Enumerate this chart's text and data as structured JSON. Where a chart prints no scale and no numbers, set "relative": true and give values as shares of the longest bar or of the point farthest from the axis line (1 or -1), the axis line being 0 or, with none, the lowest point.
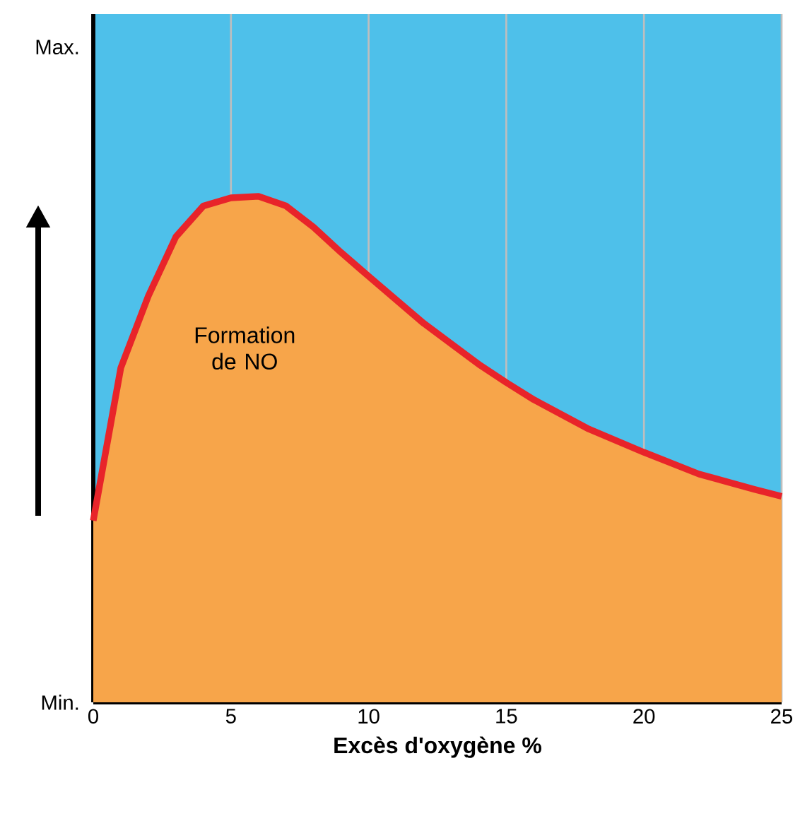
{
  "chart_data": {
    "type": "area",
    "xlabel": "Excès d'oxygène %",
    "relative": true,
    "xlim": [
      0,
      25
    ],
    "xticks": [
      0,
      5,
      10,
      15,
      20,
      25
    ],
    "annotations": [
      "Max.",
      "Min."
    ],
    "grid": "x",
    "series": [
      {
        "name": "Formation de NO",
        "color": "#f7a54a",
        "x": [
          0,
          1,
          2,
          3,
          4,
          5,
          6,
          7,
          8,
          9,
          10,
          12,
          14,
          15,
          16,
          18,
          20,
          22,
          24,
          25
        ],
        "values": [
          0.359,
          0.661,
          0.803,
          0.92,
          0.981,
          0.997,
          1,
          0.981,
          0.939,
          0.889,
          0.842,
          0.749,
          0.668,
          0.632,
          0.598,
          0.54,
          0.494,
          0.451,
          0.421,
          0.407
        ]
      }
    ]
  }
}
